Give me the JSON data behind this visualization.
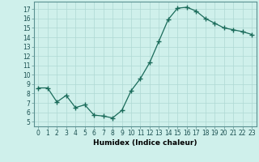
{
  "x": [
    0,
    1,
    2,
    3,
    4,
    5,
    6,
    7,
    8,
    9,
    10,
    11,
    12,
    13,
    14,
    15,
    16,
    17,
    18,
    19,
    20,
    21,
    22,
    23
  ],
  "y": [
    8.6,
    8.6,
    7.1,
    7.8,
    6.5,
    6.8,
    5.7,
    5.6,
    5.4,
    6.2,
    8.3,
    9.6,
    11.3,
    13.6,
    15.9,
    17.1,
    17.2,
    16.8,
    16.0,
    15.5,
    15.0,
    14.8,
    14.6,
    14.3
  ],
  "line_color": "#1a6b5a",
  "marker": "+",
  "marker_size": 4,
  "marker_lw": 1.0,
  "bg_color": "#cff0eb",
  "grid_color": "#aed8d3",
  "xlabel": "Humidex (Indice chaleur)",
  "xlim": [
    -0.5,
    23.5
  ],
  "ylim": [
    4.5,
    17.8
  ],
  "yticks": [
    5,
    6,
    7,
    8,
    9,
    10,
    11,
    12,
    13,
    14,
    15,
    16,
    17
  ],
  "xticks": [
    0,
    1,
    2,
    3,
    4,
    5,
    6,
    7,
    8,
    9,
    10,
    11,
    12,
    13,
    14,
    15,
    16,
    17,
    18,
    19,
    20,
    21,
    22,
    23
  ],
  "tick_fontsize": 5.5,
  "xlabel_fontsize": 6.5
}
